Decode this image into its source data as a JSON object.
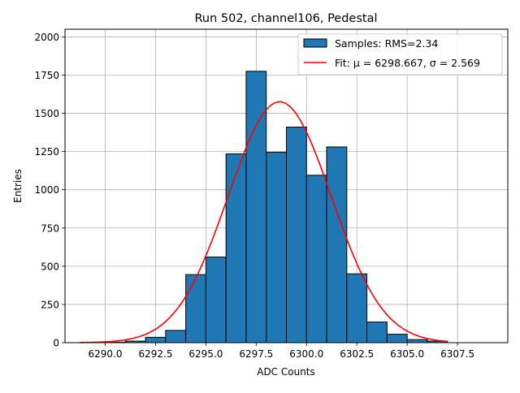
{
  "chart_data": {
    "type": "bar",
    "title": "Run 502, channel106, Pedestal",
    "xlabel": "ADC Counts",
    "ylabel": "Entries",
    "xlim": [
      6288.0,
      6310.0
    ],
    "ylim": [
      0,
      2050
    ],
    "grid": true,
    "legend_position": "top-right",
    "x_ticks": [
      6290.0,
      6292.5,
      6295.0,
      6297.5,
      6300.0,
      6302.5,
      6305.0,
      6307.5
    ],
    "x_tick_labels": [
      "6290.0",
      "6292.5",
      "6295.0",
      "6297.5",
      "6300.0",
      "6302.5",
      "6305.0",
      "6307.5"
    ],
    "y_ticks": [
      0,
      250,
      500,
      750,
      1000,
      1250,
      1500,
      1750,
      2000
    ],
    "y_tick_labels": [
      "0",
      "250",
      "500",
      "750",
      "1000",
      "1250",
      "1500",
      "1750",
      "2000"
    ],
    "histogram": {
      "name": "Samples: RMS=2.34",
      "color": "#1f77b4",
      "edge_color": "#000000",
      "bin_edges": [
        6289.0,
        6290.0,
        6291.0,
        6292.0,
        6293.0,
        6294.0,
        6295.0,
        6296.0,
        6297.0,
        6298.0,
        6299.0,
        6300.0,
        6301.0,
        6302.0,
        6303.0,
        6304.0,
        6305.0,
        6306.0,
        6307.0
      ],
      "counts": [
        0,
        3,
        10,
        35,
        80,
        445,
        560,
        1235,
        1775,
        1245,
        1410,
        1095,
        1280,
        450,
        135,
        55,
        20,
        10
      ]
    },
    "fit": {
      "name": "Fit: μ = 6298.667, σ = 2.569",
      "type": "gaussian",
      "color": "#ff0000",
      "mu": 6298.667,
      "sigma": 2.569,
      "peak": 1575,
      "x_range": [
        6288.75,
        6307.0
      ]
    }
  },
  "legend": {
    "entries": [
      {
        "label": "Samples: RMS=2.34",
        "kind": "patch"
      },
      {
        "label": "Fit: μ = 6298.667, σ = 2.569",
        "kind": "line"
      }
    ]
  }
}
